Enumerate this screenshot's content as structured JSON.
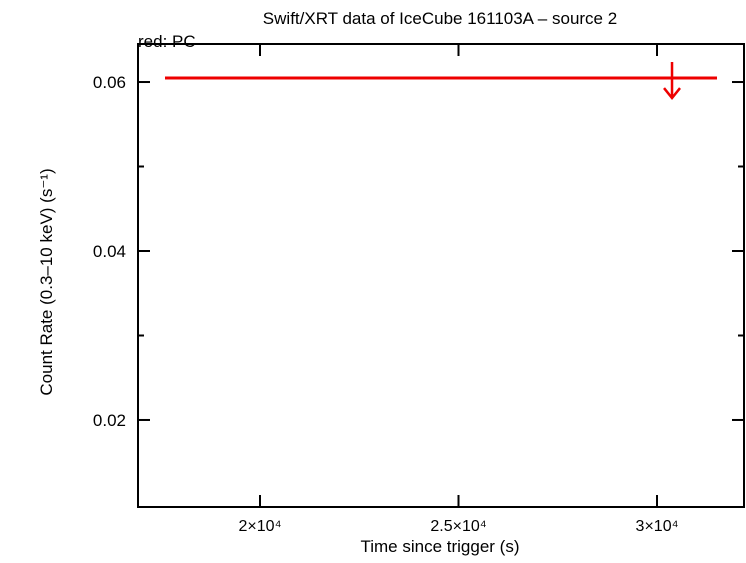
{
  "chart_data": {
    "type": "upper-limit",
    "title": "Swift/XRT data of IceCube 161103A – source 2",
    "subtitle": "red: PC",
    "x_label": "Time since trigger (s)",
    "y_label": "Count Rate (0.3–10 keV) (s⁻¹)",
    "xlim": [
      16927,
      32191
    ],
    "ylim": [
      0.0097,
      0.0645
    ],
    "xticks": [
      {
        "value": 20000,
        "label": "2×10⁴"
      },
      {
        "value": 25000,
        "label": "2.5×10⁴"
      },
      {
        "value": 30000,
        "label": "3×10⁴"
      }
    ],
    "yticks": [
      0.02,
      0.04,
      0.06
    ],
    "yminorticks": [
      0.03,
      0.05
    ],
    "series": [
      {
        "color": "#ee0000",
        "x": [
          30378
        ],
        "x_low": [
          17607
        ],
        "x_high": [
          31511
        ],
        "values": [
          0.06047
        ]
      }
    ]
  }
}
